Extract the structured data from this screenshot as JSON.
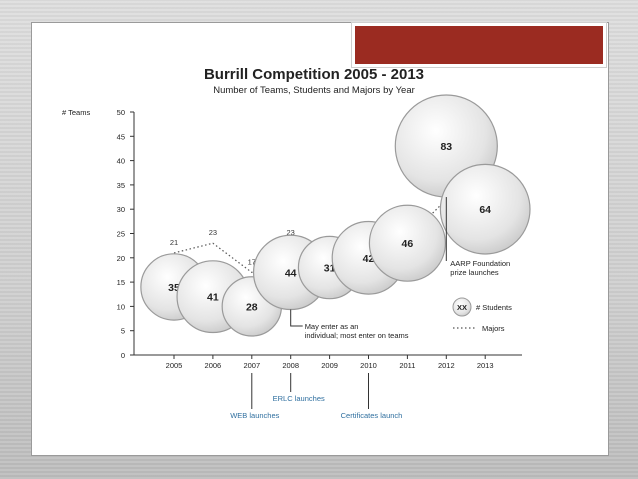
{
  "slide": {
    "accent_color": "#9b2b21",
    "background_color": "#ffffff"
  },
  "chart_data": {
    "type": "scatter",
    "title": "Burrill Competition 2005 - 2013",
    "subtitle": "Number of Teams, Students and Majors by Year",
    "ylabel": "# Teams",
    "xlabel": "",
    "ylim": [
      0,
      50
    ],
    "yticks": [
      "0",
      "5",
      "10",
      "15",
      "20",
      "25",
      "30",
      "35",
      "40",
      "45",
      "50"
    ],
    "categories": [
      "2005",
      "2006",
      "2007",
      "2008",
      "2009",
      "2010",
      "2011",
      "2012",
      "2013"
    ],
    "series": [
      {
        "name": "# Students",
        "kind": "bubble",
        "teams": [
          14,
          12,
          10,
          17,
          18,
          20,
          23,
          43,
          30
        ],
        "students": [
          35,
          41,
          28,
          44,
          31,
          42,
          46,
          83,
          64
        ]
      },
      {
        "name": "Majors",
        "kind": "dotted-line",
        "values": [
          21,
          23,
          17,
          23,
          18,
          23,
          24,
          32,
          35
        ]
      }
    ],
    "legend": {
      "placement": "right",
      "bubble_label": "XX",
      "students_label": "# Students",
      "majors_label": "Majors"
    },
    "annotations": [
      {
        "text_lines": [
          "AARP Foundation",
          "prize launches"
        ],
        "year": "2012"
      },
      {
        "text_lines": [
          "May enter as an",
          "individual; most enter on teams"
        ],
        "year": "2008"
      }
    ],
    "timeline_events": [
      {
        "year": "2007",
        "label": "WEB launches"
      },
      {
        "year": "2008",
        "label": "ERLC launches"
      },
      {
        "year": "2010",
        "label": "Certificates launch"
      }
    ],
    "grid": false,
    "colors": {
      "bubble_fill": "#e6e6e6",
      "bubble_stroke": "#9a9a9a",
      "axis": "#333333",
      "event_text": "#2f6f9f",
      "majors_line": "#555555"
    }
  }
}
